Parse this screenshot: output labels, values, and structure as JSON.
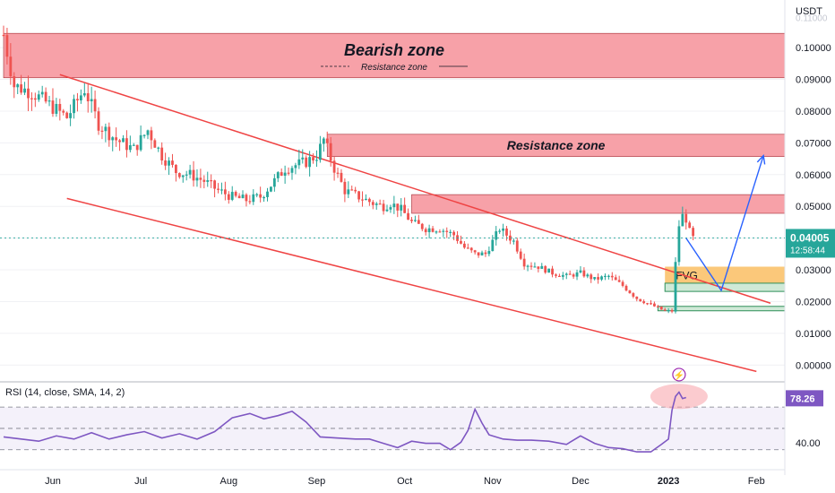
{
  "chart_data": {
    "type": "candlestick",
    "currency": "USDT",
    "x_tick_labels": [
      "Jun",
      "Jul",
      "Aug",
      "Sep",
      "Oct",
      "Nov",
      "Dec",
      "2023",
      "Feb"
    ],
    "price_axis": {
      "ylim": [
        -0.005,
        0.115
      ],
      "ticks": [
        {
          "value": 0.1,
          "label": "0.10000"
        },
        {
          "value": 0.09,
          "label": "0.09000"
        },
        {
          "value": 0.08,
          "label": "0.08000"
        },
        {
          "value": 0.07,
          "label": "0.07000"
        },
        {
          "value": 0.06,
          "label": "0.06000"
        },
        {
          "value": 0.05,
          "label": "0.05000"
        },
        {
          "value": 0.04,
          "label": "0.04000"
        },
        {
          "value": 0.03,
          "label": "0.03000"
        },
        {
          "value": 0.02,
          "label": "0.02000"
        },
        {
          "value": 0.01,
          "label": "0.01000"
        },
        {
          "value": 0.0,
          "label": "0.00000"
        }
      ],
      "partial_top_label": "0.11000"
    },
    "last_price": {
      "value": "0.04005",
      "countdown": "12:58:44",
      "color": "#26a69a"
    },
    "price_path": [
      [
        0,
        0.104
      ],
      [
        3,
        0.088
      ],
      [
        8,
        0.086
      ],
      [
        13,
        0.082
      ],
      [
        18,
        0.078
      ],
      [
        23,
        0.087
      ],
      [
        27,
        0.076
      ],
      [
        32,
        0.071
      ],
      [
        37,
        0.068
      ],
      [
        41,
        0.074
      ],
      [
        45,
        0.066
      ],
      [
        49,
        0.061
      ],
      [
        53,
        0.06
      ],
      [
        57,
        0.058
      ],
      [
        61,
        0.055
      ],
      [
        65,
        0.053
      ],
      [
        69,
        0.052
      ],
      [
        73,
        0.053
      ],
      [
        77,
        0.058
      ],
      [
        80,
        0.062
      ],
      [
        83,
        0.063
      ],
      [
        86,
        0.064
      ],
      [
        89,
        0.066
      ],
      [
        91,
        0.071
      ],
      [
        94,
        0.062
      ],
      [
        97,
        0.055
      ],
      [
        101,
        0.053
      ],
      [
        105,
        0.051
      ],
      [
        108,
        0.05
      ],
      [
        110,
        0.051
      ],
      [
        113,
        0.049
      ],
      [
        116,
        0.045
      ],
      [
        120,
        0.043
      ],
      [
        124,
        0.043
      ],
      [
        128,
        0.041
      ],
      [
        131,
        0.037
      ],
      [
        134,
        0.035
      ],
      [
        137,
        0.035
      ],
      [
        141,
        0.043
      ],
      [
        145,
        0.039
      ],
      [
        148,
        0.032
      ],
      [
        152,
        0.031
      ],
      [
        156,
        0.029
      ],
      [
        160,
        0.028
      ],
      [
        164,
        0.029
      ],
      [
        168,
        0.027
      ],
      [
        172,
        0.028
      ],
      [
        176,
        0.025
      ],
      [
        180,
        0.021
      ],
      [
        184,
        0.019
      ],
      [
        188,
        0.017
      ],
      [
        190,
        0.017
      ],
      [
        191,
        0.032
      ],
      [
        192,
        0.044
      ],
      [
        193,
        0.047
      ],
      [
        194,
        0.046
      ],
      [
        195,
        0.042
      ],
      [
        196,
        0.04
      ]
    ],
    "zones": [
      {
        "label": "Bearish zone",
        "sublabel": "Resistance zone",
        "y_top": 0.1045,
        "y_bottom": 0.0905,
        "x_start": 0,
        "color": "#f7a1a8"
      },
      {
        "label": "Resistance zone",
        "y_top": 0.0727,
        "y_bottom": 0.0657,
        "x_start": 92,
        "color": "#f7a1a8"
      },
      {
        "label": "",
        "y_top": 0.0537,
        "y_bottom": 0.0478,
        "x_start": 116,
        "color": "#f7a1a8"
      }
    ],
    "fvg": {
      "label": "FVG",
      "y_top": 0.031,
      "y_bottom": 0.0255,
      "x_start": 188,
      "color": "#fbc87a"
    },
    "support_boxes": [
      {
        "y_top": 0.0258,
        "y_bottom": 0.0232,
        "x_start": 188,
        "color": "#cfe9d7",
        "border": "#2f8f5a"
      },
      {
        "y_top": 0.0185,
        "y_bottom": 0.0171,
        "x_start": 186,
        "color": "#cfe9d7",
        "border": "#2f8f5a"
      }
    ],
    "trendlines": [
      {
        "from": [
          16,
          0.0915
        ],
        "to": [
          218,
          0.0195
        ],
        "color": "#ef4444"
      },
      {
        "from": [
          18,
          0.0525
        ],
        "to": [
          214,
          -0.002
        ],
        "color": "#ef4444"
      }
    ],
    "projection": {
      "points": [
        [
          194,
          0.04
        ],
        [
          204,
          0.0235
        ],
        [
          216,
          0.066
        ]
      ],
      "color": "#2962ff"
    },
    "rsi": {
      "label": "RSI (14, close, SMA, 14, 2)",
      "current": "78.26",
      "tick_label": "40.00",
      "levels": [
        70,
        50,
        30
      ],
      "ylim": [
        18,
        92
      ],
      "line_color": "#7e57c2",
      "path": [
        [
          0,
          42
        ],
        [
          5,
          40
        ],
        [
          10,
          38
        ],
        [
          15,
          43
        ],
        [
          20,
          40
        ],
        [
          25,
          46
        ],
        [
          30,
          40
        ],
        [
          35,
          44
        ],
        [
          40,
          47
        ],
        [
          45,
          41
        ],
        [
          50,
          45
        ],
        [
          55,
          40
        ],
        [
          60,
          47
        ],
        [
          65,
          60
        ],
        [
          70,
          64
        ],
        [
          74,
          59
        ],
        [
          78,
          62
        ],
        [
          82,
          66
        ],
        [
          86,
          56
        ],
        [
          90,
          42
        ],
        [
          95,
          41
        ],
        [
          100,
          40
        ],
        [
          104,
          40
        ],
        [
          108,
          36
        ],
        [
          112,
          32
        ],
        [
          116,
          38
        ],
        [
          120,
          36
        ],
        [
          124,
          36
        ],
        [
          127,
          30
        ],
        [
          130,
          37
        ],
        [
          132,
          48
        ],
        [
          134,
          68
        ],
        [
          136,
          55
        ],
        [
          138,
          44
        ],
        [
          142,
          40
        ],
        [
          146,
          39
        ],
        [
          150,
          39
        ],
        [
          155,
          38
        ],
        [
          160,
          35
        ],
        [
          164,
          43
        ],
        [
          168,
          36
        ],
        [
          172,
          32
        ],
        [
          176,
          31
        ],
        [
          180,
          28
        ],
        [
          184,
          28
        ],
        [
          187,
          35
        ],
        [
          189,
          40
        ],
        [
          190,
          67
        ],
        [
          191,
          80
        ],
        [
          192,
          84
        ],
        [
          193,
          78
        ],
        [
          194,
          79
        ]
      ]
    },
    "overlay_markers": [
      {
        "label": "⚡",
        "color": "#9c27b0"
      }
    ]
  }
}
